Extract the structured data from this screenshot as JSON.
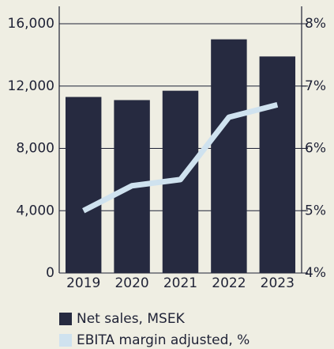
{
  "chart_data": {
    "type": "bar",
    "categories": [
      "2019",
      "2020",
      "2021",
      "2022",
      "2023"
    ],
    "series": [
      {
        "name": "Net sales, MSEK",
        "color": "#262a40",
        "type": "bar",
        "values": [
          11300,
          11100,
          11700,
          15000,
          13900
        ]
      },
      {
        "name": "EBITA margin adjusted, %",
        "color": "#cfe2ef",
        "type": "line",
        "axis": "y2",
        "values": [
          5.0,
          5.4,
          5.5,
          6.5,
          6.7
        ]
      }
    ],
    "ylim": [
      0,
      16000
    ],
    "yticks": [
      0,
      {
        "value": 4000,
        "label": "4,000"
      },
      {
        "value": 8000,
        "label": "8,000"
      },
      {
        "value": 12000,
        "label": "12,000"
      },
      {
        "value": 16000,
        "label": "16,000"
      }
    ],
    "y2lim": [
      4,
      8
    ],
    "y2ticks": [
      {
        "value": 4,
        "label": "4%"
      },
      {
        "value": 5,
        "label": "5%"
      },
      {
        "value": 6,
        "label": "6%"
      },
      {
        "value": 7,
        "label": "7%"
      },
      {
        "value": 8,
        "label": "8%"
      }
    ],
    "grid": true,
    "legend": "bottom"
  }
}
